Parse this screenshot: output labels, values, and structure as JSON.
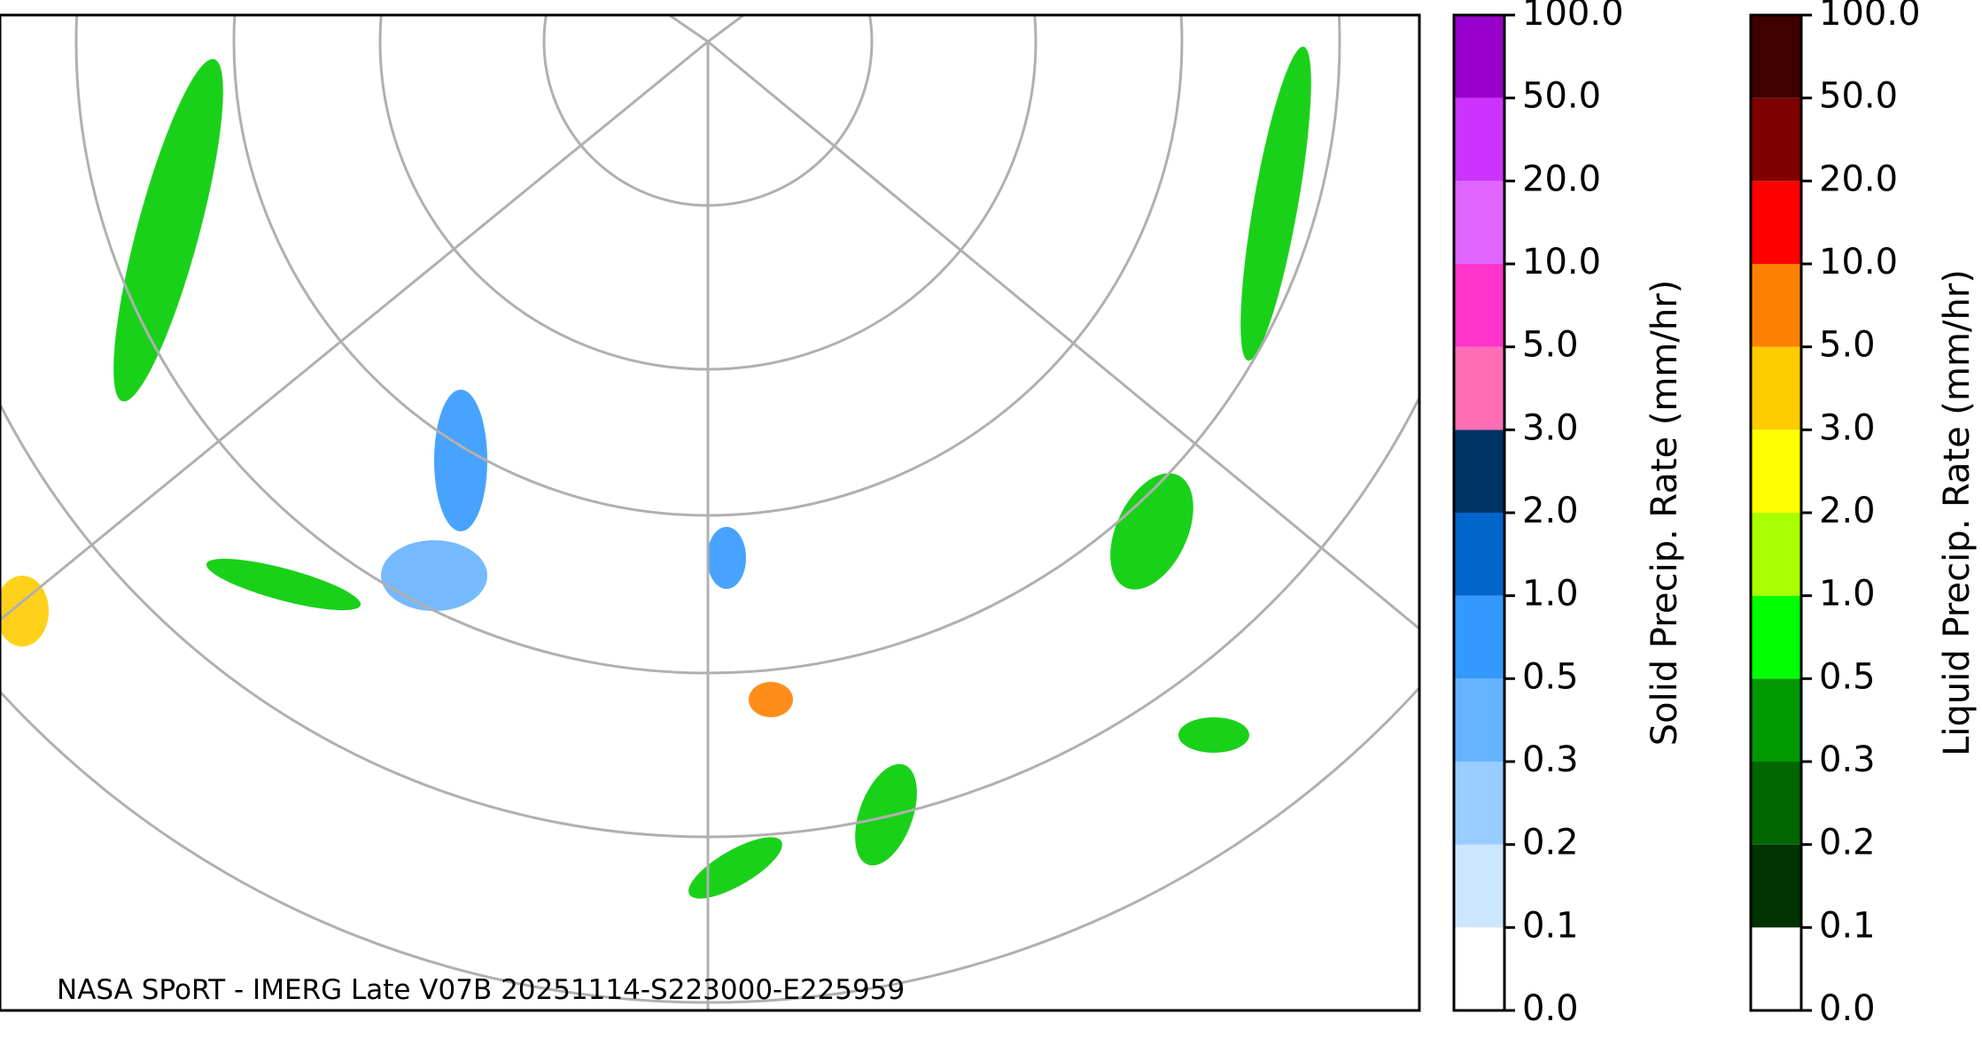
{
  "map": {
    "caption": "NASA SPoRT - IMERG Late V07B 20251114-S223000-E225959"
  },
  "colorbars": [
    {
      "label": "Solid Precip. Rate (mm/hr)",
      "ticks": [
        "0.0",
        "0.1",
        "0.2",
        "0.3",
        "0.5",
        "1.0",
        "2.0",
        "3.0",
        "5.0",
        "10.0",
        "20.0",
        "50.0",
        "100.0"
      ],
      "colors": [
        "#ffffff",
        "#cce6ff",
        "#99ccff",
        "#66b3ff",
        "#3399ff",
        "#0066cc",
        "#003366",
        "#ff6eb4",
        "#ff33cc",
        "#e066ff",
        "#cc33ff",
        "#9900cc"
      ]
    },
    {
      "label": "Liquid Precip. Rate (mm/hr)",
      "ticks": [
        "0.0",
        "0.1",
        "0.2",
        "0.3",
        "0.5",
        "1.0",
        "2.0",
        "3.0",
        "5.0",
        "10.0",
        "20.0",
        "50.0",
        "100.0"
      ],
      "colors": [
        "#ffffff",
        "#003300",
        "#006600",
        "#009900",
        "#00ff00",
        "#aaff00",
        "#ffff00",
        "#ffcc00",
        "#ff8000",
        "#ff0000",
        "#800000",
        "#400000"
      ]
    }
  ]
}
